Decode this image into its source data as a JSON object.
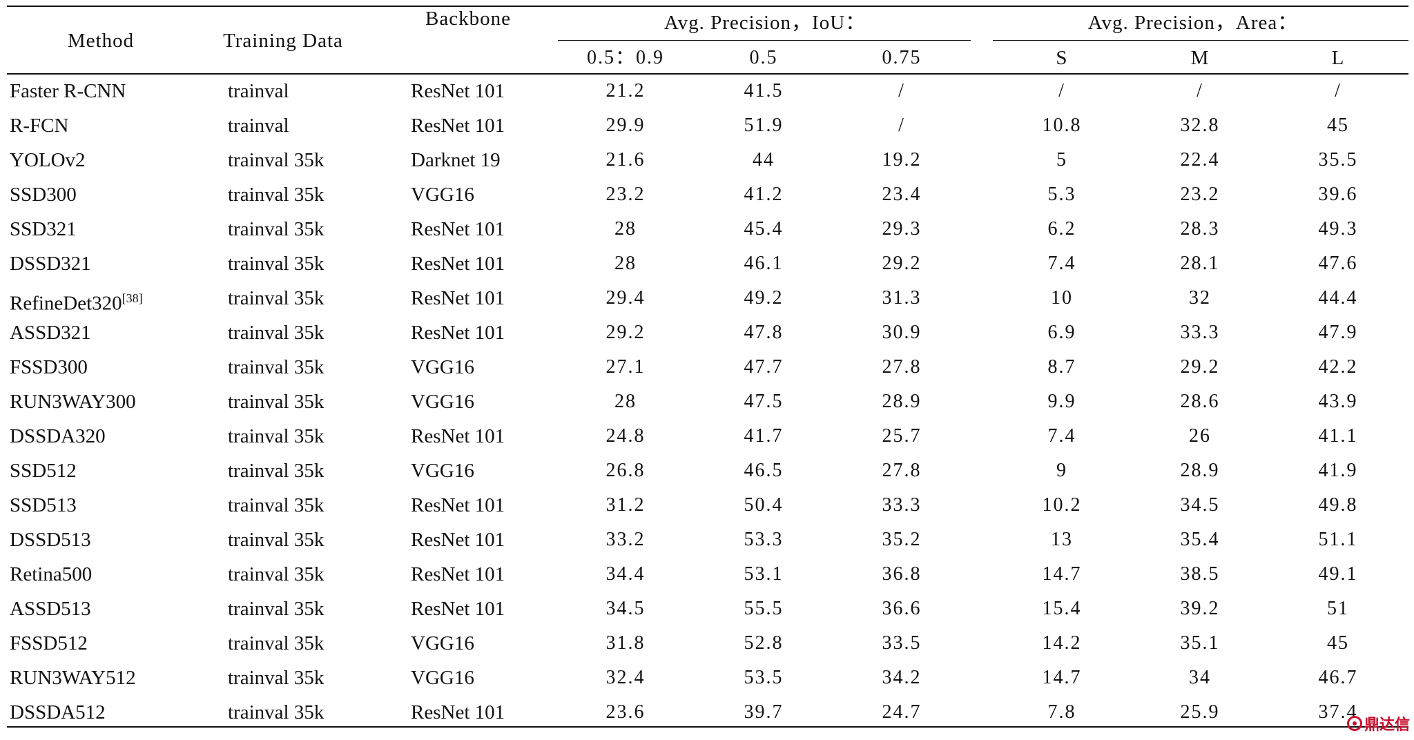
{
  "headers": {
    "method": "Method",
    "training_data": "Training Data",
    "backbone": "Backbone",
    "group_iou": "Avg. Precision，IoU：",
    "group_area": "Avg. Precision，Area：",
    "sub": [
      "0.5：0.9",
      "0.5",
      "0.75",
      "S",
      "M",
      "L"
    ]
  },
  "rows": [
    {
      "method": "Faster R-CNN",
      "sup": "",
      "training": "trainval",
      "backbone": "ResNet 101",
      "values": [
        "21.2",
        "41.5",
        "/",
        "/",
        "/",
        "/"
      ]
    },
    {
      "method": "R-FCN",
      "sup": "",
      "training": "trainval",
      "backbone": "ResNet 101",
      "values": [
        "29.9",
        "51.9",
        "/",
        "10.8",
        "32.8",
        "45"
      ]
    },
    {
      "method": "YOLOv2",
      "sup": "",
      "training": "trainval 35k",
      "backbone": "Darknet 19",
      "values": [
        "21.6",
        "44",
        "19.2",
        "5",
        "22.4",
        "35.5"
      ]
    },
    {
      "method": "SSD300",
      "sup": "",
      "training": "trainval 35k",
      "backbone": "VGG16",
      "values": [
        "23.2",
        "41.2",
        "23.4",
        "5.3",
        "23.2",
        "39.6"
      ]
    },
    {
      "method": "SSD321",
      "sup": "",
      "training": "trainval 35k",
      "backbone": "ResNet 101",
      "values": [
        "28",
        "45.4",
        "29.3",
        "6.2",
        "28.3",
        "49.3"
      ]
    },
    {
      "method": "DSSD321",
      "sup": "",
      "training": "trainval 35k",
      "backbone": "ResNet 101",
      "values": [
        "28",
        "46.1",
        "29.2",
        "7.4",
        "28.1",
        "47.6"
      ]
    },
    {
      "method": "RefineDet320",
      "sup": "[38]",
      "training": "trainval 35k",
      "backbone": "ResNet 101",
      "values": [
        "29.4",
        "49.2",
        "31.3",
        "10",
        "32",
        "44.4"
      ]
    },
    {
      "method": "ASSD321",
      "sup": "",
      "training": "trainval 35k",
      "backbone": "ResNet 101",
      "values": [
        "29.2",
        "47.8",
        "30.9",
        "6.9",
        "33.3",
        "47.9"
      ]
    },
    {
      "method": "FSSD300",
      "sup": "",
      "training": "trainval 35k",
      "backbone": "VGG16",
      "values": [
        "27.1",
        "47.7",
        "27.8",
        "8.7",
        "29.2",
        "42.2"
      ]
    },
    {
      "method": "RUN3WAY300",
      "sup": "",
      "training": "trainval 35k",
      "backbone": "VGG16",
      "values": [
        "28",
        "47.5",
        "28.9",
        "9.9",
        "28.6",
        "43.9"
      ]
    },
    {
      "method": "DSSDA320",
      "sup": "",
      "training": "trainval 35k",
      "backbone": "ResNet 101",
      "values": [
        "24.8",
        "41.7",
        "25.7",
        "7.4",
        "26",
        "41.1"
      ]
    },
    {
      "method": "SSD512",
      "sup": "",
      "training": "trainval 35k",
      "backbone": "VGG16",
      "values": [
        "26.8",
        "46.5",
        "27.8",
        "9",
        "28.9",
        "41.9"
      ]
    },
    {
      "method": "SSD513",
      "sup": "",
      "training": "trainval 35k",
      "backbone": "ResNet 101",
      "values": [
        "31.2",
        "50.4",
        "33.3",
        "10.2",
        "34.5",
        "49.8"
      ]
    },
    {
      "method": "DSSD513",
      "sup": "",
      "training": "trainval 35k",
      "backbone": "ResNet 101",
      "values": [
        "33.2",
        "53.3",
        "35.2",
        "13",
        "35.4",
        "51.1"
      ]
    },
    {
      "method": "Retina500",
      "sup": "",
      "training": "trainval 35k",
      "backbone": "ResNet 101",
      "values": [
        "34.4",
        "53.1",
        "36.8",
        "14.7",
        "38.5",
        "49.1"
      ]
    },
    {
      "method": "ASSD513",
      "sup": "",
      "training": "trainval 35k",
      "backbone": "ResNet 101",
      "values": [
        "34.5",
        "55.5",
        "36.6",
        "15.4",
        "39.2",
        "51"
      ]
    },
    {
      "method": "FSSD512",
      "sup": "",
      "training": "trainval 35k",
      "backbone": "VGG16",
      "values": [
        "31.8",
        "52.8",
        "33.5",
        "14.2",
        "35.1",
        "45"
      ]
    },
    {
      "method": "RUN3WAY512",
      "sup": "",
      "training": "trainval 35k",
      "backbone": "VGG16",
      "values": [
        "32.4",
        "53.5",
        "34.2",
        "14.7",
        "34",
        "46.7"
      ]
    },
    {
      "method": "DSSDA512",
      "sup": "",
      "training": "trainval 35k",
      "backbone": "ResNet 101",
      "values": [
        "23.6",
        "39.7",
        "24.7",
        "7.8",
        "25.9",
        "37.4"
      ]
    }
  ],
  "watermark": {
    "text": "鼎达信",
    "color": "#c8102e"
  }
}
